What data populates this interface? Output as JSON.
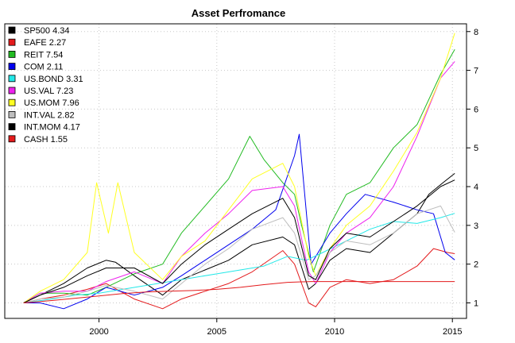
{
  "chart_data": {
    "type": "line",
    "title": "Asset Perfromance",
    "xlabel": "",
    "ylabel": "",
    "x_ticks": [
      "2000",
      "2005",
      "2010",
      "2015"
    ],
    "y_ticks": [
      1,
      2,
      3,
      4,
      5,
      6,
      7,
      8
    ],
    "xlim": [
      1996.0,
      2015.6
    ],
    "ylim": [
      0.6,
      8.2
    ],
    "y_axis_side": "right",
    "grid": true,
    "legend_position": "top-left",
    "legend": [
      {
        "label": "SP500 4.34",
        "color": "#000000"
      },
      {
        "label": "EAFE 2.27",
        "color": "#e31a1c"
      },
      {
        "label": "REIT 7.54",
        "color": "#22bb22"
      },
      {
        "label": "COM 2.11",
        "color": "#0000ee"
      },
      {
        "label": "US.BOND 3.31",
        "color": "#22e8e8"
      },
      {
        "label": "US.VAL 7.23",
        "color": "#ee22ee"
      },
      {
        "label": "US.MOM 7.96",
        "color": "#ffff22"
      },
      {
        "label": "INT.VAL 2.82",
        "color": "#bebebe"
      },
      {
        "label": "INT.MOM 4.17",
        "color": "#000000"
      },
      {
        "label": "CASH 1.55",
        "color": "#e31a1c"
      }
    ],
    "series": [
      {
        "name": "SP500",
        "color": "#000000",
        "x": [
          1996.8,
          1997.5,
          1998.5,
          1999.5,
          2000.3,
          2000.7,
          2001.5,
          2002.7,
          2003.5,
          2004.5,
          2005.5,
          2006.5,
          2007.8,
          2008.3,
          2008.9,
          2009.2,
          2009.8,
          2010.5,
          2011.5,
          2012.5,
          2013.5,
          2014.0,
          2014.6,
          2015.1
        ],
        "values": [
          1.0,
          1.2,
          1.5,
          1.9,
          2.1,
          2.05,
          1.7,
          1.2,
          1.6,
          1.85,
          2.1,
          2.5,
          2.7,
          2.5,
          1.35,
          1.5,
          2.1,
          2.4,
          2.3,
          2.8,
          3.3,
          3.8,
          4.1,
          4.34
        ]
      },
      {
        "name": "EAFE",
        "color": "#e31a1c",
        "x": [
          1996.8,
          1997.5,
          1998.5,
          1999.5,
          2000.3,
          2001.5,
          2002.7,
          2003.5,
          2004.5,
          2005.5,
          2006.5,
          2007.8,
          2008.3,
          2008.9,
          2009.2,
          2009.8,
          2010.5,
          2011.5,
          2012.5,
          2013.5,
          2014.2,
          2014.8,
          2015.1
        ],
        "values": [
          1.0,
          1.1,
          1.2,
          1.35,
          1.5,
          1.1,
          0.85,
          1.1,
          1.3,
          1.5,
          1.8,
          2.35,
          2.0,
          1.0,
          0.9,
          1.4,
          1.6,
          1.5,
          1.6,
          1.95,
          2.4,
          2.3,
          2.27
        ]
      },
      {
        "name": "REIT",
        "color": "#22bb22",
        "x": [
          1996.8,
          1997.5,
          1998.5,
          1999.5,
          2000.3,
          2001.5,
          2002.7,
          2003.5,
          2004.5,
          2005.5,
          2006.4,
          2007.0,
          2007.8,
          2008.3,
          2008.6,
          2009.1,
          2009.8,
          2010.5,
          2011.5,
          2012.5,
          2013.5,
          2014.5,
          2015.1
        ],
        "values": [
          1.0,
          1.25,
          1.25,
          1.2,
          1.4,
          1.75,
          2.0,
          2.8,
          3.5,
          4.2,
          5.3,
          4.7,
          4.1,
          3.8,
          3.0,
          1.8,
          3.0,
          3.8,
          4.1,
          5.0,
          5.6,
          6.9,
          7.54
        ]
      },
      {
        "name": "COM",
        "color": "#0000ee",
        "x": [
          1996.8,
          1997.5,
          1998.5,
          1999.5,
          2000.3,
          2001.5,
          2002.7,
          2003.5,
          2004.5,
          2005.5,
          2006.5,
          2007.5,
          2008.3,
          2008.5,
          2009.0,
          2009.8,
          2010.5,
          2011.3,
          2012.5,
          2013.5,
          2014.2,
          2014.7,
          2015.1
        ],
        "values": [
          1.0,
          1.0,
          0.85,
          1.1,
          1.4,
          1.2,
          1.4,
          1.7,
          2.1,
          2.5,
          2.9,
          3.4,
          4.8,
          5.35,
          2.0,
          2.8,
          3.3,
          3.8,
          3.6,
          3.4,
          3.3,
          2.3,
          2.11
        ]
      },
      {
        "name": "US.BOND",
        "color": "#22e8e8",
        "x": [
          1996.8,
          1998.0,
          1999.0,
          2000.0,
          2001.0,
          2002.0,
          2003.0,
          2004.0,
          2005.0,
          2006.0,
          2007.0,
          2008.0,
          2008.8,
          2009.5,
          2010.5,
          2011.5,
          2012.5,
          2013.5,
          2014.5,
          2015.1
        ],
        "values": [
          1.0,
          1.1,
          1.2,
          1.25,
          1.35,
          1.45,
          1.55,
          1.65,
          1.75,
          1.85,
          1.95,
          2.2,
          2.1,
          2.3,
          2.6,
          2.9,
          3.1,
          3.05,
          3.2,
          3.31
        ]
      },
      {
        "name": "US.VAL",
        "color": "#ee22ee",
        "x": [
          1996.8,
          1997.5,
          1998.5,
          1999.5,
          2000.3,
          2001.5,
          2002.7,
          2003.5,
          2004.5,
          2005.5,
          2006.5,
          2007.8,
          2008.3,
          2008.9,
          2009.2,
          2009.8,
          2010.5,
          2011.5,
          2012.5,
          2013.5,
          2014.5,
          2015.1
        ],
        "values": [
          1.0,
          1.25,
          1.3,
          1.3,
          1.55,
          1.8,
          1.5,
          2.2,
          2.8,
          3.3,
          3.9,
          4.0,
          3.5,
          1.8,
          1.5,
          2.3,
          2.8,
          3.2,
          4.0,
          5.3,
          6.8,
          7.23
        ]
      },
      {
        "name": "US.MOM",
        "color": "#ffff22",
        "x": [
          1996.8,
          1997.5,
          1998.5,
          1999.5,
          1999.9,
          2000.4,
          2000.8,
          2001.5,
          2002.7,
          2003.5,
          2004.5,
          2005.5,
          2006.5,
          2007.8,
          2008.3,
          2008.9,
          2009.2,
          2009.8,
          2010.5,
          2011.5,
          2012.5,
          2013.5,
          2014.5,
          2015.1
        ],
        "values": [
          1.0,
          1.3,
          1.6,
          2.3,
          4.1,
          2.8,
          4.1,
          2.3,
          1.6,
          2.2,
          2.6,
          3.4,
          4.2,
          4.6,
          4.0,
          2.2,
          1.7,
          2.4,
          3.0,
          3.5,
          4.4,
          5.4,
          6.8,
          7.96
        ]
      },
      {
        "name": "INT.VAL",
        "color": "#bebebe",
        "x": [
          1996.8,
          1997.5,
          1998.5,
          1999.5,
          2000.3,
          2001.5,
          2002.7,
          2003.5,
          2004.5,
          2005.5,
          2006.5,
          2007.8,
          2008.3,
          2008.9,
          2009.2,
          2009.8,
          2010.5,
          2011.5,
          2012.5,
          2013.5,
          2014.5,
          2015.1
        ],
        "values": [
          1.0,
          1.1,
          1.15,
          1.3,
          1.45,
          1.3,
          1.1,
          1.5,
          2.0,
          2.4,
          2.9,
          3.2,
          2.8,
          1.6,
          1.7,
          2.3,
          2.6,
          2.5,
          2.8,
          3.3,
          3.5,
          2.82
        ]
      },
      {
        "name": "INT.MOM",
        "color": "#000000",
        "x": [
          1996.8,
          1997.5,
          1998.5,
          1999.5,
          2000.3,
          2001.5,
          2002.7,
          2003.5,
          2004.5,
          2005.5,
          2006.5,
          2007.8,
          2008.3,
          2008.9,
          2009.2,
          2009.8,
          2010.5,
          2011.5,
          2012.5,
          2013.5,
          2014.5,
          2015.1
        ],
        "values": [
          1.0,
          1.2,
          1.4,
          1.7,
          1.9,
          1.9,
          1.5,
          2.0,
          2.5,
          2.9,
          3.3,
          3.7,
          3.2,
          1.7,
          1.6,
          2.4,
          2.8,
          2.7,
          3.1,
          3.5,
          4.0,
          4.17
        ]
      },
      {
        "name": "CASH",
        "color": "#e31a1c",
        "x": [
          1996.8,
          1998.0,
          1999.0,
          2000.0,
          2001.0,
          2002.0,
          2003.0,
          2004.0,
          2005.0,
          2006.0,
          2007.0,
          2008.0,
          2009.0,
          2010.0,
          2011.0,
          2012.0,
          2013.0,
          2014.0,
          2015.1
        ],
        "values": [
          1.0,
          1.06,
          1.12,
          1.18,
          1.24,
          1.28,
          1.3,
          1.32,
          1.35,
          1.4,
          1.47,
          1.53,
          1.55,
          1.55,
          1.55,
          1.55,
          1.55,
          1.55,
          1.55
        ]
      }
    ]
  }
}
